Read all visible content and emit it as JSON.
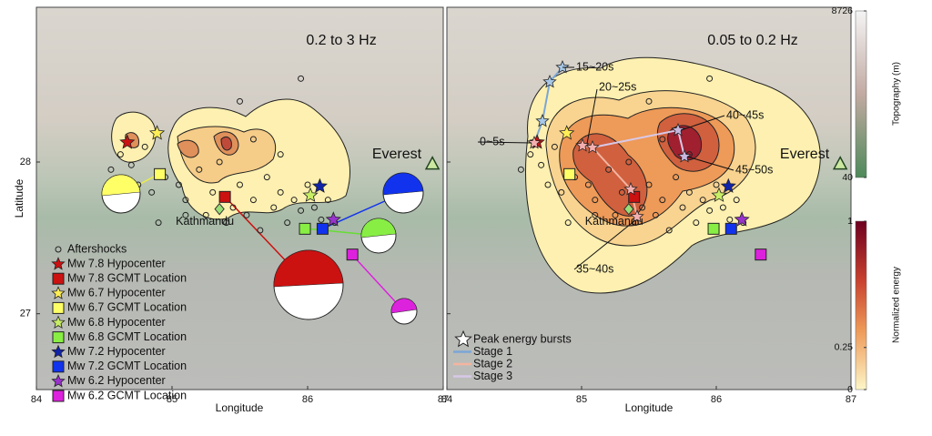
{
  "panels": [
    {
      "label": "0.2 to 3 Hz"
    },
    {
      "label": "0.05 to 0.2 Hz"
    }
  ],
  "xlim": [
    84,
    87
  ],
  "xticks": [
    84,
    85,
    86,
    87
  ],
  "ylim": [
    26.5,
    29.02
  ],
  "yticks": [
    27,
    28
  ],
  "x_label": "Longitude",
  "y_label": "Latitude",
  "places": [
    {
      "name": "Kathmandu",
      "lon": 85.35,
      "lat": 27.69
    },
    {
      "name": "Everest",
      "lon": 86.92,
      "lat": 27.99
    }
  ],
  "events": [
    {
      "hypo_color": "#cc1111",
      "gcmt_color": "#cc1111",
      "hypo": [
        84.67,
        28.13
      ],
      "gcmt": [
        85.39,
        27.77
      ]
    },
    {
      "hypo_color": "#ffee55",
      "gcmt_color": "#ffff66",
      "hypo": [
        84.89,
        28.19
      ],
      "gcmt": [
        84.91,
        27.92
      ]
    },
    {
      "hypo_color": "#c8ee66",
      "gcmt_color": "#88ee44",
      "hypo": [
        86.02,
        27.78
      ],
      "gcmt": [
        85.98,
        27.56
      ]
    },
    {
      "hypo_color": "#1122aa",
      "gcmt_color": "#1133ee",
      "hypo": [
        86.09,
        27.84
      ],
      "gcmt": [
        86.11,
        27.56
      ]
    },
    {
      "hypo_color": "#9933cc",
      "gcmt_color": "#dd22dd",
      "hypo": [
        86.19,
        27.62
      ],
      "gcmt": [
        86.33,
        27.39
      ]
    }
  ],
  "aftershocks": {
    "lon": [
      84.55,
      84.62,
      84.7,
      84.75,
      84.8,
      84.85,
      84.95,
      85.05,
      85.1,
      85.2,
      85.25,
      85.3,
      85.4,
      85.45,
      85.5,
      85.55,
      85.6,
      85.65,
      85.7,
      85.75,
      85.8,
      85.85,
      85.9,
      85.95,
      86.0,
      86.05,
      86.1,
      86.15,
      85.35,
      85.6,
      85.8,
      84.9,
      85.5,
      85.95,
      86.2,
      85.1
    ],
    "lat": [
      27.95,
      28.05,
      27.98,
      27.85,
      28.1,
      27.8,
      27.9,
      27.85,
      27.75,
      27.95,
      27.65,
      27.8,
      27.6,
      27.7,
      27.85,
      27.65,
      27.75,
      27.55,
      27.9,
      27.7,
      27.8,
      27.6,
      27.75,
      27.68,
      27.85,
      27.7,
      27.62,
      27.75,
      28.0,
      28.15,
      28.05,
      27.6,
      28.4,
      28.55,
      27.6,
      27.65
    ]
  },
  "legend": [
    "Aftershocks",
    "Mw 7.8 Hypocenter",
    "Mw 7.8 GCMT Location",
    "Mw 6.7 Hypocenter",
    "Mw 6.7 GCMT Location",
    "Mw 6.8 Hypocenter",
    "Mw 6.8 GCMT Location",
    "Mw 7.2 Hypocenter",
    "Mw 7.2 GCMT Location",
    "Mw 6.2 Hypocenter",
    "Mw 6.2 GCMT Location"
  ],
  "legend_right": [
    "Peak energy bursts",
    "Stage 1",
    "Stage 2",
    "Stage 3"
  ],
  "time_labels": [
    "15~20s",
    "20~25s",
    "0~5s",
    "40~45s",
    "45~50s",
    "35~40s"
  ],
  "topo_colorbar": {
    "label": "Topography (m)",
    "lim": [
      40,
      8726
    ],
    "ticks": [
      40,
      8726
    ]
  },
  "energy_colorbar": {
    "label": "Normalized energy",
    "lim": [
      0,
      1
    ],
    "ticks": [
      0,
      0.25,
      1
    ]
  }
}
